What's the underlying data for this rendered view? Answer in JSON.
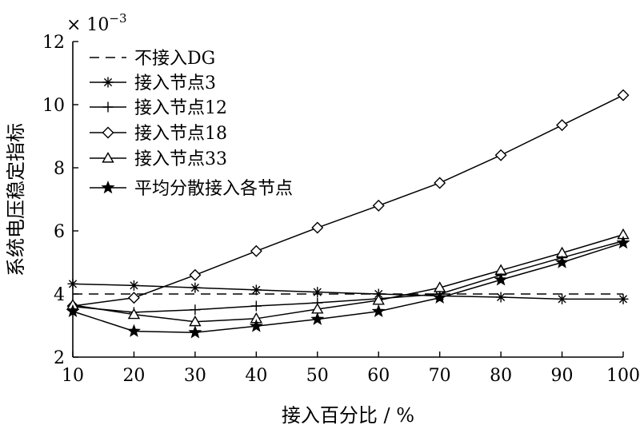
{
  "chart_data": {
    "type": "line",
    "xlabel": "接入百分比 / %",
    "ylabel": "系统电压稳定指标",
    "y_multiplier_label": "× 10⁻³",
    "xlim": [
      10,
      100
    ],
    "ylim": [
      2,
      12
    ],
    "x_ticks": [
      10,
      20,
      30,
      40,
      50,
      60,
      70,
      80,
      90,
      100
    ],
    "y_ticks": [
      2,
      4,
      6,
      8,
      10,
      12
    ],
    "grid": false,
    "legend_position": "top-left",
    "x": [
      10,
      20,
      30,
      40,
      50,
      60,
      70,
      80,
      90,
      100
    ],
    "series": [
      {
        "name": "不接入DG",
        "style": "dashed",
        "marker": "none",
        "values": [
          4.0,
          4.0,
          4.0,
          4.0,
          4.0,
          4.0,
          4.0,
          4.0,
          4.0,
          4.0
        ]
      },
      {
        "name": "接入节点3",
        "style": "solid",
        "marker": "asterisk",
        "values": [
          4.32,
          4.27,
          4.2,
          4.13,
          4.06,
          4.0,
          3.94,
          3.9,
          3.84,
          3.84
        ]
      },
      {
        "name": "接入节点12",
        "style": "solid",
        "marker": "plus",
        "values": [
          3.6,
          3.42,
          3.5,
          3.62,
          3.72,
          3.85,
          4.0,
          4.6,
          5.15,
          5.68
        ]
      },
      {
        "name": "接入节点18",
        "style": "solid",
        "marker": "diamond",
        "values": [
          3.62,
          3.88,
          4.6,
          5.36,
          6.1,
          6.8,
          7.52,
          8.4,
          9.35,
          10.3
        ]
      },
      {
        "name": "接入节点33",
        "style": "solid",
        "marker": "triangle",
        "values": [
          3.65,
          3.35,
          3.12,
          3.22,
          3.52,
          3.8,
          4.2,
          4.75,
          5.3,
          5.88
        ]
      },
      {
        "name": "平均分散接入各节点",
        "style": "solid",
        "marker": "star",
        "values": [
          3.45,
          2.82,
          2.78,
          2.98,
          3.2,
          3.45,
          3.88,
          4.45,
          5.0,
          5.62
        ]
      }
    ]
  }
}
